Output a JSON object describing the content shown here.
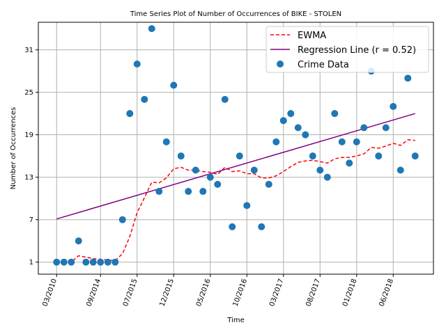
{
  "chart_data": {
    "type": "scatter",
    "title": "Time Series Plot of Number of Occurrences of BIKE - STOLEN",
    "xlabel": "Time",
    "ylabel": "Number of Occurrences",
    "x_index_range": [
      0,
      49
    ],
    "xlim": [
      -2.5,
      51.5
    ],
    "ylim": [
      -0.7,
      34.9
    ],
    "grid": true,
    "legend_position": "top-right",
    "x_ticks": [
      {
        "index": 0,
        "label": "03/2010"
      },
      {
        "index": 6,
        "label": "09/2014"
      },
      {
        "index": 11,
        "label": "07/2015"
      },
      {
        "index": 16,
        "label": "12/2015"
      },
      {
        "index": 21,
        "label": "05/2016"
      },
      {
        "index": 26,
        "label": "10/2016"
      },
      {
        "index": 31,
        "label": "03/2017"
      },
      {
        "index": 36,
        "label": "08/2017"
      },
      {
        "index": 41,
        "label": "01/2018"
      },
      {
        "index": 46,
        "label": "06/2018"
      }
    ],
    "y_ticks": [
      1,
      7,
      13,
      19,
      25,
      31
    ],
    "colors": {
      "ewma": "#ff0000",
      "regression": "#800080",
      "points": "#1f77b4",
      "grid": "#b0b0b0"
    },
    "series": [
      {
        "name": "EWMA",
        "style": "dashed",
        "values": [
          1,
          1,
          1,
          1.9,
          1.7,
          1.5,
          1.4,
          1.3,
          1.2,
          2.2,
          4.6,
          8,
          10.1,
          12.3,
          12.2,
          12.9,
          14.2,
          14.4,
          14,
          14,
          13.8,
          13.7,
          13.4,
          14.4,
          13.8,
          13.9,
          13.5,
          13.5,
          12.9,
          12.9,
          13.2,
          13.8,
          14.5,
          15.1,
          15.3,
          15.4,
          15.2,
          15,
          15.6,
          15.8,
          15.8,
          16,
          16.3,
          17.2,
          17.1,
          17.4,
          17.8,
          17.5,
          18.3,
          18.2
        ]
      },
      {
        "name": "Regression Line (r = 0.52)",
        "style": "solid",
        "endpoints": [
          [
            0,
            7.1
          ],
          [
            49,
            22
          ]
        ]
      },
      {
        "name": "Crime Data",
        "style": "markers",
        "values": [
          1,
          1,
          1,
          4,
          1,
          1,
          1,
          1,
          1,
          7,
          22,
          29,
          24,
          34,
          11,
          18,
          26,
          16,
          11,
          14,
          11,
          13,
          12,
          24,
          6,
          16,
          9,
          14,
          6,
          12,
          18,
          21,
          22,
          20,
          19,
          16,
          14,
          13,
          22,
          18,
          15,
          18,
          20,
          28,
          16,
          20,
          23,
          14,
          27,
          16
        ]
      }
    ]
  }
}
